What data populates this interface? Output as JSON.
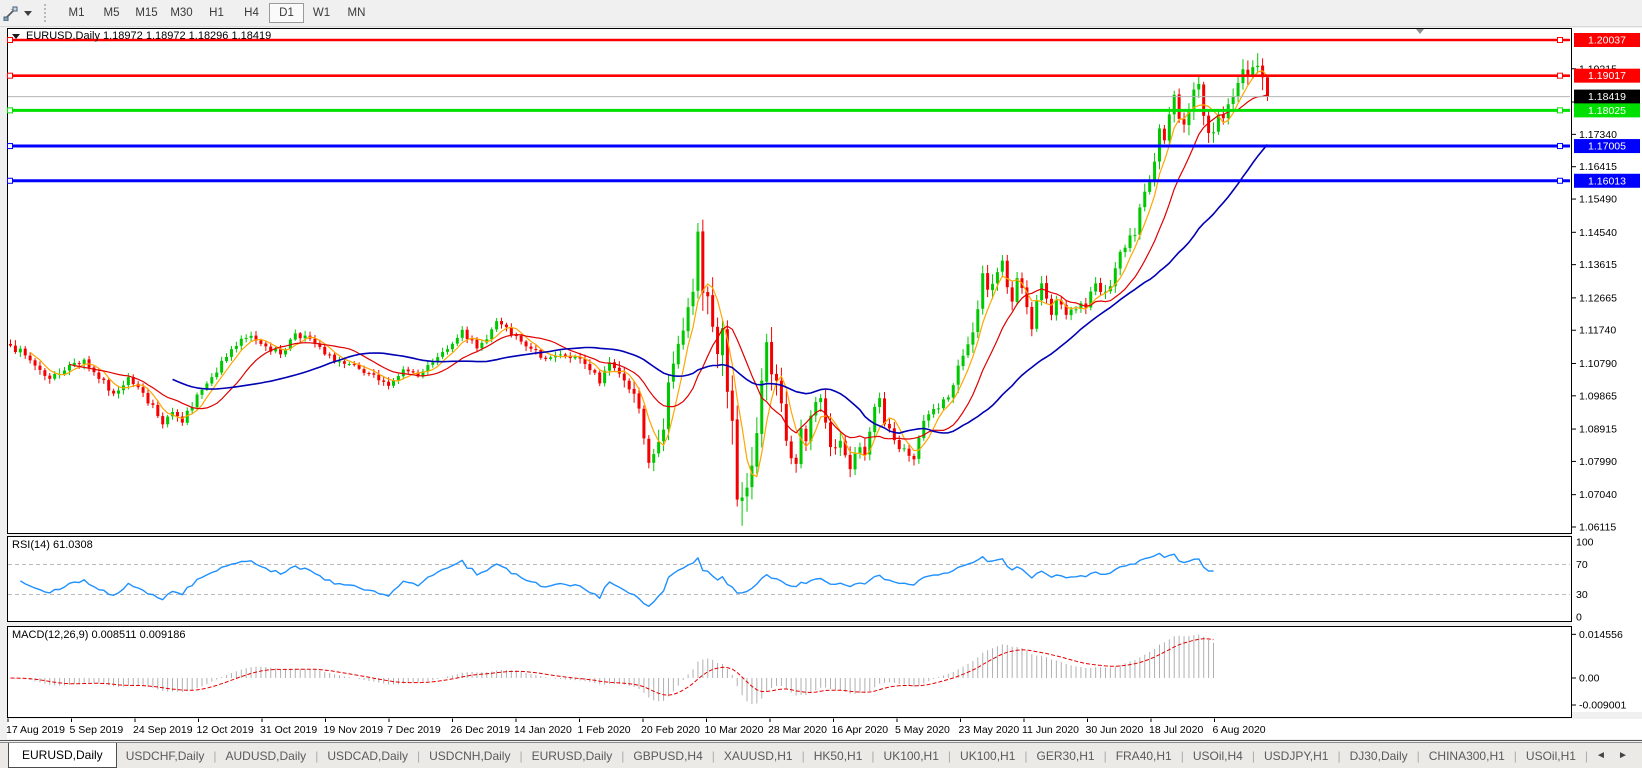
{
  "toolbar": {
    "timeframes": [
      {
        "label": "M1",
        "active": false
      },
      {
        "label": "M5",
        "active": false
      },
      {
        "label": "M15",
        "active": false
      },
      {
        "label": "M30",
        "active": false
      },
      {
        "label": "H1",
        "active": false
      },
      {
        "label": "H4",
        "active": false
      },
      {
        "label": "D1",
        "active": true
      },
      {
        "label": "W1",
        "active": false
      },
      {
        "label": "MN",
        "active": false
      }
    ]
  },
  "chart": {
    "title": "EURUSD,Daily 1.18972 1.18972 1.18296 1.18419",
    "symbol": "EURUSD",
    "period": "Daily",
    "ohlc": {
      "open": 1.18972,
      "high": 1.18972,
      "low": 1.18296,
      "close": 1.18419
    }
  },
  "price_axis": {
    "ticks": [
      "1.19215",
      "1.18265",
      "1.17340",
      "1.16415",
      "1.15490",
      "1.14540",
      "1.13615",
      "1.12665",
      "1.11740",
      "1.10790",
      "1.09865",
      "1.08915",
      "1.07990",
      "1.07040",
      "1.06115"
    ],
    "current_price_label": {
      "text": "1.18419",
      "bg": "#000000",
      "fg": "#ffffff"
    }
  },
  "indicators": {
    "rsi_label": "RSI(14) 61.0308",
    "rsi_axis_labels": [
      {
        "text": "100",
        "value": 100
      },
      {
        "text": "70",
        "value": 70
      },
      {
        "text": "30",
        "value": 30
      },
      {
        "text": "0",
        "value": 0
      }
    ],
    "macd_label": "MACD(12,26,9) 0.008511 0.009186",
    "macd_axis_labels": [
      {
        "text": "0.014556",
        "value": 0.014556
      },
      {
        "text": "0.00",
        "value": 0
      },
      {
        "text": "-0.009001",
        "value": -0.009001
      }
    ]
  },
  "time_axis": {
    "dates": [
      "17 Aug 2019",
      "5 Sep 2019",
      "24 Sep 2019",
      "12 Oct 2019",
      "31 Oct 2019",
      "19 Nov 2019",
      "7 Dec 2019",
      "26 Dec 2019",
      "14 Jan 2020",
      "1 Feb 2020",
      "20 Feb 2020",
      "10 Mar 2020",
      "28 Mar 2020",
      "16 Apr 2020",
      "5 May 2020",
      "23 May 2020",
      "11 Jun 2020",
      "30 Jun 2020",
      "18 Jul 2020",
      "6 Aug 2020"
    ]
  },
  "tabs": [
    {
      "label": "EURUSD,Daily",
      "active": true
    },
    {
      "label": "USDCHF,Daily",
      "active": false
    },
    {
      "label": "AUDUSD,Daily",
      "active": false
    },
    {
      "label": "USDCAD,Daily",
      "active": false
    },
    {
      "label": "USDCNH,Daily",
      "active": false
    },
    {
      "label": "EURUSD,Daily",
      "active": false
    },
    {
      "label": "GBPUSD,H4",
      "active": false
    },
    {
      "label": "XAUUSD,H1",
      "active": false
    },
    {
      "label": "HK50,H1",
      "active": false
    },
    {
      "label": "UK100,H1",
      "active": false
    },
    {
      "label": "UK100,H1",
      "active": false
    },
    {
      "label": "GER30,H1",
      "active": false
    },
    {
      "label": "FRA40,H1",
      "active": false
    },
    {
      "label": "USOil,H4",
      "active": false
    },
    {
      "label": "USDJPY,H1",
      "active": false
    },
    {
      "label": "DJ30,Daily",
      "active": false
    },
    {
      "label": "CHINA300,H1",
      "active": false
    },
    {
      "label": "USOil,H1",
      "active": false
    }
  ],
  "tab_scroll": {
    "left": "◄",
    "right": "►"
  },
  "chart_data": {
    "type": "candlestick",
    "symbol": "EURUSD",
    "timeframe": "Daily",
    "num_bars_visible": 257,
    "up_color": "#00c800",
    "down_color": "#f40000",
    "last_bar": {
      "open": 1.18972,
      "high": 1.18972,
      "low": 1.18296,
      "close": 1.18419
    },
    "spike_high": {
      "day": 254,
      "high": 1.1966
    },
    "horizontal_lines": [
      {
        "label": "1.20037",
        "price": 1.20037,
        "color": "#ff0000",
        "width": 2.6,
        "markers": true,
        "badge": true
      },
      {
        "label": "1.19017",
        "price": 1.19017,
        "color": "#ff0000",
        "width": 2.6,
        "markers": true,
        "badge": true
      },
      {
        "label": "1.18419",
        "price": 1.18419,
        "color": "#b4b4b4",
        "width": 1,
        "markers": false,
        "badge": true,
        "badge_color": "#000000"
      },
      {
        "label": "1.18025",
        "price": 1.18025,
        "color": "#00e000",
        "width": 3,
        "markers": true,
        "badge": true
      },
      {
        "label": "1.17005",
        "price": 1.17005,
        "color": "#0000ff",
        "width": 3,
        "markers": true,
        "badge": true
      },
      {
        "label": "1.16013",
        "price": 1.16013,
        "color": "#0000ff",
        "width": 3,
        "markers": true,
        "badge": true
      }
    ],
    "moving_averages": [
      {
        "period": 5,
        "color": "#ffa500",
        "width": 1.2
      },
      {
        "period": 13,
        "color": "#e00000",
        "width": 1.2
      },
      {
        "period": 34,
        "color": "#0000b4",
        "width": 1.6
      }
    ],
    "rsi": {
      "period": 14,
      "current": 61.0308,
      "color": "#1e90ff",
      "levels": [
        70,
        30
      ],
      "last_day": 245
    },
    "macd": {
      "fast": 12,
      "slow": 26,
      "signal": 9,
      "main": 0.008511,
      "signal_value": 0.009186,
      "hist_color": "#b0b0b0",
      "signal_color": "#e60000",
      "scale_max": 0.014556,
      "scale_min": -0.009001,
      "last_day": 245
    },
    "close_waypoints": [
      [
        0,
        1.113
      ],
      [
        4,
        1.1088
      ],
      [
        8,
        1.1035
      ],
      [
        12,
        1.1075
      ],
      [
        15,
        1.109
      ],
      [
        18,
        1.1035
      ],
      [
        21,
        1.0993
      ],
      [
        24,
        1.104
      ],
      [
        27,
        1.0995
      ],
      [
        31,
        1.0905
      ],
      [
        33,
        1.094
      ],
      [
        35,
        1.091
      ],
      [
        38,
        1.099
      ],
      [
        41,
        1.104
      ],
      [
        45,
        1.112
      ],
      [
        49,
        1.1158
      ],
      [
        52,
        1.1128
      ],
      [
        55,
        1.1105
      ],
      [
        58,
        1.1165
      ],
      [
        61,
        1.115
      ],
      [
        64,
        1.1105
      ],
      [
        68,
        1.1078
      ],
      [
        72,
        1.1052
      ],
      [
        77,
        1.1015
      ],
      [
        80,
        1.1062
      ],
      [
        83,
        1.1042
      ],
      [
        86,
        1.1082
      ],
      [
        89,
        1.112
      ],
      [
        92,
        1.1175
      ],
      [
        95,
        1.1122
      ],
      [
        97,
        1.1148
      ],
      [
        99,
        1.12
      ],
      [
        102,
        1.116
      ],
      [
        105,
        1.1128
      ],
      [
        109,
        1.1092
      ],
      [
        112,
        1.1105
      ],
      [
        115,
        1.1098
      ],
      [
        118,
        1.106
      ],
      [
        120,
        1.1022
      ],
      [
        122,
        1.1082
      ],
      [
        124,
        1.105
      ],
      [
        126,
        1.1005
      ],
      [
        128,
        1.095
      ],
      [
        129,
        1.0865
      ],
      [
        130,
        1.0795
      ],
      [
        131,
        1.082
      ],
      [
        132,
        1.0855
      ],
      [
        133,
        1.089
      ],
      [
        134,
        1.1025
      ],
      [
        136,
        1.1135
      ],
      [
        137,
        1.1173
      ],
      [
        138,
        1.124
      ],
      [
        139,
        1.1284
      ],
      [
        140,
        1.1456
      ],
      [
        141,
        1.1281
      ],
      [
        142,
        1.1271
      ],
      [
        143,
        1.1184
      ],
      [
        144,
        1.1106
      ],
      [
        145,
        1.118
      ],
      [
        146,
        1.0998
      ],
      [
        147,
        1.0915
      ],
      [
        148,
        1.069
      ],
      [
        149,
        1.0696
      ],
      [
        150,
        1.0724
      ],
      [
        151,
        1.0787
      ],
      [
        152,
        1.088
      ],
      [
        153,
        1.103
      ],
      [
        154,
        1.114
      ],
      [
        155,
        1.1048
      ],
      [
        156,
        1.103
      ],
      [
        157,
        1.0965
      ],
      [
        158,
        1.0858
      ],
      [
        159,
        1.0808
      ],
      [
        160,
        1.0792
      ],
      [
        161,
        1.0894
      ],
      [
        162,
        1.0857
      ],
      [
        163,
        1.093
      ],
      [
        165,
        1.098
      ],
      [
        166,
        1.091
      ],
      [
        167,
        1.084
      ],
      [
        169,
        1.0858
      ],
      [
        171,
        1.0777
      ],
      [
        172,
        1.0822
      ],
      [
        174,
        1.0818
      ],
      [
        176,
        1.0955
      ],
      [
        177,
        1.098
      ],
      [
        178,
        1.0905
      ],
      [
        181,
        1.0834
      ],
      [
        183,
        1.0815
      ],
      [
        184,
        1.0805
      ],
      [
        186,
        1.0915
      ],
      [
        188,
        1.0949
      ],
      [
        191,
        1.0982
      ],
      [
        192,
        1.1017
      ],
      [
        194,
        1.1101
      ],
      [
        195,
        1.1134
      ],
      [
        196,
        1.1168
      ],
      [
        197,
        1.1234
      ],
      [
        198,
        1.1337
      ],
      [
        199,
        1.129
      ],
      [
        201,
        1.134
      ],
      [
        202,
        1.1373
      ],
      [
        203,
        1.1297
      ],
      [
        204,
        1.1256
      ],
      [
        205,
        1.1323
      ],
      [
        207,
        1.124
      ],
      [
        208,
        1.1177
      ],
      [
        210,
        1.1308
      ],
      [
        212,
        1.1218
      ],
      [
        213,
        1.126
      ],
      [
        215,
        1.1218
      ],
      [
        217,
        1.1234
      ],
      [
        218,
        1.1251
      ],
      [
        219,
        1.1239
      ],
      [
        221,
        1.1308
      ],
      [
        223,
        1.1284
      ],
      [
        224,
        1.13
      ],
      [
        226,
        1.1398
      ],
      [
        227,
        1.141
      ],
      [
        229,
        1.1446
      ],
      [
        230,
        1.1525
      ],
      [
        231,
        1.157
      ],
      [
        232,
        1.1598
      ],
      [
        233,
        1.1656
      ],
      [
        234,
        1.1751
      ],
      [
        235,
        1.1717
      ],
      [
        236,
        1.1791
      ],
      [
        237,
        1.1847
      ],
      [
        238,
        1.1778
      ],
      [
        239,
        1.1762
      ],
      [
        240,
        1.1803
      ],
      [
        241,
        1.1862
      ],
      [
        242,
        1.1878
      ],
      [
        243,
        1.1787
      ],
      [
        244,
        1.1738
      ],
      [
        245,
        1.174
      ],
      [
        246,
        1.1791
      ],
      [
        247,
        1.178
      ],
      [
        248,
        1.182
      ],
      [
        249,
        1.1842
      ],
      [
        250,
        1.1881
      ],
      [
        251,
        1.192
      ],
      [
        252,
        1.1905
      ],
      [
        253,
        1.1926
      ],
      [
        254,
        1.193
      ],
      [
        255,
        1.1897
      ],
      [
        256,
        1.18419
      ]
    ],
    "volatility_waypoints": [
      [
        0,
        0.0016
      ],
      [
        30,
        0.0016
      ],
      [
        60,
        0.0014
      ],
      [
        90,
        0.0013
      ],
      [
        120,
        0.0015
      ],
      [
        128,
        0.0028
      ],
      [
        134,
        0.0038
      ],
      [
        140,
        0.005
      ],
      [
        148,
        0.0078
      ],
      [
        152,
        0.006
      ],
      [
        158,
        0.0042
      ],
      [
        165,
        0.003
      ],
      [
        180,
        0.0022
      ],
      [
        190,
        0.002
      ],
      [
        197,
        0.003
      ],
      [
        205,
        0.0026
      ],
      [
        215,
        0.002
      ],
      [
        225,
        0.0022
      ],
      [
        232,
        0.0026
      ],
      [
        240,
        0.003
      ],
      [
        248,
        0.0028
      ],
      [
        252,
        0.003
      ],
      [
        254,
        0.0045
      ],
      [
        256,
        0.003
      ]
    ]
  }
}
